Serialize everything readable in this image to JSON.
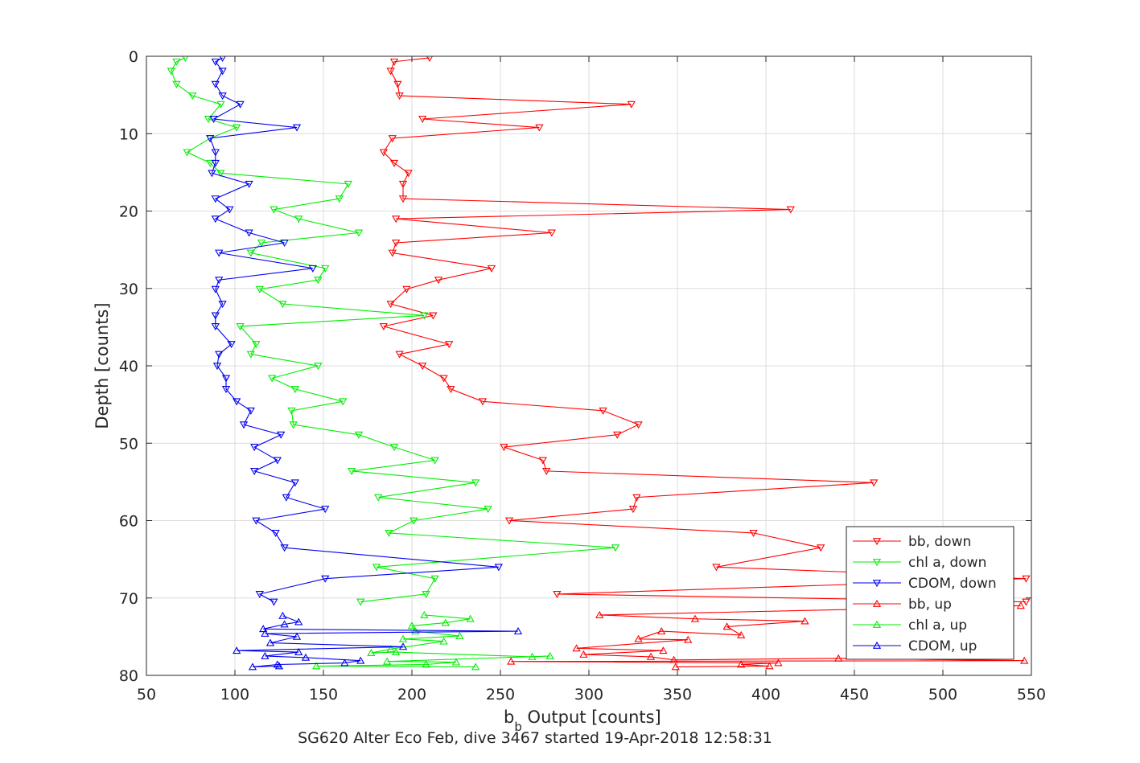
{
  "chart_data": {
    "type": "line",
    "title": "",
    "subtitle": "SG620 Alter Eco Feb, dive 3467 started 19-Apr-2018 12:58:31",
    "xlabel_main": "b",
    "xlabel_sub": "b",
    "xlabel_rest": " Output [counts]",
    "ylabel": "Depth [counts]",
    "xlim": [
      50,
      550
    ],
    "ylim": [
      0,
      80
    ],
    "y_reversed": true,
    "grid": true,
    "legend_position": "bottom-right",
    "xticks": [
      "50",
      "100",
      "150",
      "200",
      "250",
      "300",
      "350",
      "400",
      "450",
      "500",
      "550"
    ],
    "yticks": [
      "0",
      "10",
      "20",
      "30",
      "40",
      "50",
      "60",
      "70",
      "80"
    ],
    "series": [
      {
        "name": "bb, down",
        "color": "#ff0000",
        "marker": "triangle-down",
        "points": [
          [
            210,
            0.2
          ],
          [
            190,
            0.7
          ],
          [
            188,
            1.9
          ],
          [
            192,
            3.6
          ],
          [
            193,
            5.1
          ],
          [
            324,
            6.2
          ],
          [
            206,
            8.1
          ],
          [
            272,
            9.2
          ],
          [
            189,
            10.6
          ],
          [
            184,
            12.4
          ],
          [
            190,
            13.8
          ],
          [
            198,
            15.1
          ],
          [
            195,
            16.5
          ],
          [
            195,
            18.4
          ],
          [
            414,
            19.8
          ],
          [
            191,
            21.0
          ],
          [
            279,
            22.8
          ],
          [
            191,
            24.1
          ],
          [
            189,
            25.4
          ],
          [
            245,
            27.4
          ],
          [
            215,
            28.9
          ],
          [
            197,
            30.1
          ],
          [
            188,
            32.0
          ],
          [
            212,
            33.5
          ],
          [
            184,
            34.9
          ],
          [
            221,
            37.2
          ],
          [
            193,
            38.5
          ],
          [
            206,
            40.0
          ],
          [
            218,
            41.6
          ],
          [
            222,
            43.0
          ],
          [
            240,
            44.6
          ],
          [
            308,
            45.8
          ],
          [
            328,
            47.6
          ],
          [
            316,
            48.9
          ],
          [
            252,
            50.5
          ],
          [
            274,
            52.2
          ],
          [
            276,
            53.6
          ],
          [
            461,
            55.1
          ],
          [
            327,
            57.0
          ],
          [
            325,
            58.5
          ],
          [
            255,
            60.0
          ],
          [
            393,
            61.6
          ],
          [
            431,
            63.5
          ],
          [
            372,
            66.0
          ],
          [
            547,
            67.5
          ],
          [
            282,
            69.5
          ],
          [
            547,
            70.5
          ]
        ]
      },
      {
        "name": "chl a, down",
        "color": "#00ee00",
        "marker": "triangle-down",
        "points": [
          [
            72,
            0.2
          ],
          [
            67,
            0.7
          ],
          [
            64,
            1.9
          ],
          [
            67,
            3.6
          ],
          [
            76,
            5.1
          ],
          [
            92,
            6.2
          ],
          [
            85,
            8.1
          ],
          [
            101,
            9.2
          ],
          [
            86,
            10.6
          ],
          [
            73,
            12.4
          ],
          [
            86,
            13.8
          ],
          [
            92,
            15.1
          ],
          [
            164,
            16.5
          ],
          [
            159,
            18.4
          ],
          [
            122,
            19.8
          ],
          [
            136,
            21.0
          ],
          [
            170,
            22.8
          ],
          [
            115,
            24.1
          ],
          [
            109,
            25.4
          ],
          [
            151,
            27.4
          ],
          [
            147,
            28.9
          ],
          [
            114,
            30.1
          ],
          [
            127,
            32.0
          ],
          [
            207,
            33.5
          ],
          [
            103,
            34.9
          ],
          [
            112,
            37.2
          ],
          [
            109,
            38.5
          ],
          [
            147,
            40.0
          ],
          [
            121,
            41.6
          ],
          [
            134,
            43.0
          ],
          [
            161,
            44.6
          ],
          [
            132,
            45.8
          ],
          [
            133,
            47.6
          ],
          [
            170,
            48.9
          ],
          [
            190,
            50.5
          ],
          [
            213,
            52.2
          ],
          [
            166,
            53.6
          ],
          [
            236,
            55.1
          ],
          [
            181,
            57.0
          ],
          [
            243,
            58.5
          ],
          [
            201,
            60.0
          ],
          [
            187,
            61.6
          ],
          [
            315,
            63.5
          ],
          [
            180,
            66.0
          ],
          [
            213,
            67.5
          ],
          [
            208,
            69.5
          ],
          [
            171,
            70.5
          ]
        ]
      },
      {
        "name": "CDOM, down",
        "color": "#0000ee",
        "marker": "triangle-down",
        "points": [
          [
            93,
            0.2
          ],
          [
            89,
            0.7
          ],
          [
            93,
            1.9
          ],
          [
            89,
            3.6
          ],
          [
            93,
            5.1
          ],
          [
            103,
            6.2
          ],
          [
            88,
            8.1
          ],
          [
            135,
            9.2
          ],
          [
            86,
            10.6
          ],
          [
            89,
            12.4
          ],
          [
            89,
            13.8
          ],
          [
            87,
            15.1
          ],
          [
            108,
            16.5
          ],
          [
            89,
            18.4
          ],
          [
            97,
            19.8
          ],
          [
            89,
            21.0
          ],
          [
            108,
            22.8
          ],
          [
            128,
            24.1
          ],
          [
            91,
            25.4
          ],
          [
            144,
            27.4
          ],
          [
            91,
            28.9
          ],
          [
            89,
            30.1
          ],
          [
            93,
            32.0
          ],
          [
            89,
            33.5
          ],
          [
            89,
            34.9
          ],
          [
            98,
            37.2
          ],
          [
            91,
            38.5
          ],
          [
            90,
            40.0
          ],
          [
            95,
            41.6
          ],
          [
            95,
            43.0
          ],
          [
            101,
            44.6
          ],
          [
            109,
            45.8
          ],
          [
            105,
            47.6
          ],
          [
            126,
            48.9
          ],
          [
            111,
            50.5
          ],
          [
            124,
            52.2
          ],
          [
            111,
            53.6
          ],
          [
            134,
            55.1
          ],
          [
            129,
            57.0
          ],
          [
            151,
            58.5
          ],
          [
            112,
            60.0
          ],
          [
            123,
            61.6
          ],
          [
            128,
            63.5
          ],
          [
            249,
            66.0
          ],
          [
            151,
            67.5
          ],
          [
            114,
            69.5
          ],
          [
            122,
            70.5
          ]
        ]
      },
      {
        "name": "bb, up",
        "color": "#ff0000",
        "marker": "triangle-up",
        "points": [
          [
            544,
            71.0
          ],
          [
            306,
            72.2
          ],
          [
            360,
            72.7
          ],
          [
            422,
            73.0
          ],
          [
            378,
            73.7
          ],
          [
            386,
            74.8
          ],
          [
            341,
            74.3
          ],
          [
            328,
            75.3
          ],
          [
            356,
            75.4
          ],
          [
            293,
            76.5
          ],
          [
            342,
            76.8
          ],
          [
            297,
            77.3
          ],
          [
            335,
            77.6
          ],
          [
            348,
            78.0
          ],
          [
            441,
            77.8
          ],
          [
            546,
            78.1
          ],
          [
            256,
            78.2
          ],
          [
            407,
            78.4
          ],
          [
            386,
            78.6
          ],
          [
            402,
            78.8
          ],
          [
            349,
            78.9
          ]
        ]
      },
      {
        "name": "chl a, up",
        "color": "#00ee00",
        "marker": "triangle-up",
        "points": [
          [
            207,
            72.2
          ],
          [
            233,
            72.7
          ],
          [
            219,
            73.2
          ],
          [
            200,
            73.6
          ],
          [
            202,
            74.3
          ],
          [
            227,
            74.9
          ],
          [
            195,
            75.3
          ],
          [
            218,
            75.6
          ],
          [
            188,
            76.6
          ],
          [
            177,
            77.1
          ],
          [
            191,
            77.0
          ],
          [
            268,
            77.6
          ],
          [
            278,
            77.5
          ],
          [
            186,
            78.2
          ],
          [
            225,
            78.3
          ],
          [
            208,
            78.6
          ],
          [
            146,
            78.8
          ],
          [
            236,
            78.9
          ]
        ]
      },
      {
        "name": "CDOM, up",
        "color": "#0000ee",
        "marker": "triangle-up",
        "points": [
          [
            127,
            72.3
          ],
          [
            136,
            73.1
          ],
          [
            128,
            73.4
          ],
          [
            116,
            74.0
          ],
          [
            260,
            74.3
          ],
          [
            117,
            74.6
          ],
          [
            135,
            75.0
          ],
          [
            120,
            75.8
          ],
          [
            195,
            76.3
          ],
          [
            101,
            76.8
          ],
          [
            136,
            77.0
          ],
          [
            117,
            77.5
          ],
          [
            140,
            77.7
          ],
          [
            171,
            78.1
          ],
          [
            162,
            78.4
          ],
          [
            124,
            78.6
          ],
          [
            110,
            78.9
          ],
          [
            125,
            78.8
          ]
        ]
      }
    ]
  }
}
